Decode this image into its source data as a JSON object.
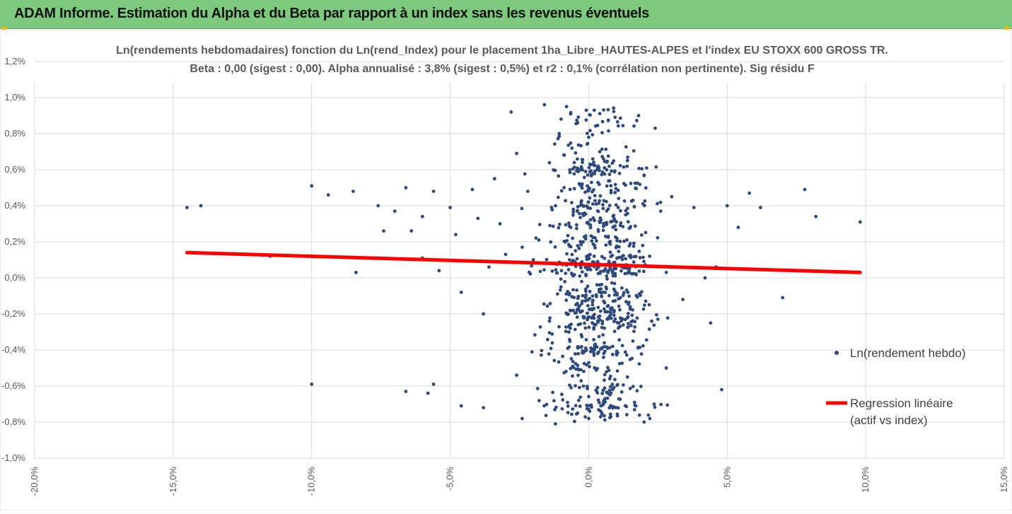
{
  "header": {
    "title": "ADAM Informe. Estimation du Alpha et du Beta par rapport à un index sans les revenus éventuels",
    "background": "#7dc97d"
  },
  "chart_data": {
    "type": "scatter",
    "title": "Ln(rendements hebdomadaires) fonction du Ln(rend_Index) pour le placement 1ha_Libre_HAUTES-ALPES et l'index EU STOXX 600 GROSS TR.",
    "subtitle": "Beta : 0,00 (sigest : 0,00). Alpha annualisé : 3,8% (sigest : 0,5%) et r2 : 0,1% (corrélation non pertinente). Sig résidu F",
    "xlabel": "",
    "ylabel": "",
    "xlim": [
      -20,
      15
    ],
    "ylim": [
      -1.0,
      1.2
    ],
    "x_ticks": [
      -20,
      -15,
      -10,
      -5,
      0,
      5,
      10,
      15
    ],
    "x_tick_labels": [
      "-20,0%",
      "-15,0%",
      "-10,0%",
      "-5,0%",
      "0,0%",
      "5,0%",
      "10,0%",
      "15,0%"
    ],
    "y_ticks": [
      1.2,
      1.0,
      0.8,
      0.6,
      0.4,
      0.2,
      0.0,
      -0.2,
      -0.4,
      -0.6,
      -0.8,
      -1.0
    ],
    "y_tick_labels": [
      "1,2%",
      "1,0%",
      "0,8%",
      "0,6%",
      "0,4%",
      "0,2%",
      "0,0%",
      "-0,2%",
      "-0,4%",
      "-0,6%",
      "-0,8%",
      "-1,0%"
    ],
    "grid": "vertical and horizontal",
    "legend_position": "right",
    "series": [
      {
        "name": "Ln(rendement hebdo)",
        "color": "#2e4a7d",
        "x": [
          -14.5,
          -14.0,
          -11.5,
          -10.0,
          -9.4,
          -8.5,
          -7.6,
          -7.4,
          -7.0,
          -6.6,
          -6.4,
          -6.0,
          -5.6,
          -5.4,
          -5.0,
          -4.8,
          -4.6,
          -4.2,
          -4.0,
          -3.8,
          -3.6,
          -3.4,
          -3.2,
          -3.0,
          -2.8,
          -2.6,
          -2.4,
          -2.2,
          -2.0,
          -1.8,
          -1.6,
          -1.4,
          -1.2,
          -1.0,
          -0.8,
          -0.6,
          -0.4,
          -0.2,
          0.0,
          0.2,
          0.4,
          0.6,
          0.8,
          1.0,
          1.2,
          1.4,
          1.6,
          1.8,
          2.0,
          2.2,
          2.4,
          2.6,
          2.8,
          3.0,
          3.4,
          3.8,
          4.2,
          4.6,
          5.0,
          5.4,
          5.8,
          6.2,
          7.0,
          7.8,
          8.2,
          9.8,
          -10.0,
          -6.6,
          -5.8,
          -4.6,
          -3.8,
          -2.4,
          -0.4,
          0.8,
          2.0,
          4.4,
          4.8,
          -2.6,
          -1.2,
          0.0,
          1.4,
          2.8,
          -8.4,
          -6.0,
          -5.6
        ],
        "y": [
          0.39,
          0.4,
          0.12,
          0.51,
          0.46,
          0.48,
          0.4,
          0.26,
          0.37,
          0.5,
          0.26,
          0.34,
          0.48,
          0.04,
          0.39,
          0.24,
          -0.08,
          0.49,
          0.33,
          -0.2,
          0.06,
          0.55,
          0.3,
          0.13,
          0.92,
          0.69,
          0.17,
          0.48,
          0.1,
          0.21,
          0.96,
          0.29,
          0.4,
          -0.05,
          0.95,
          0.02,
          0.86,
          0.2,
          0.78,
          0.93,
          0.7,
          0.05,
          -0.2,
          0.31,
          0.06,
          0.65,
          0.43,
          0.9,
          0.57,
          0.12,
          0.83,
          0.37,
          0.03,
          0.45,
          -0.12,
          0.39,
          0.0,
          0.06,
          0.4,
          0.28,
          0.47,
          0.39,
          -0.11,
          0.49,
          0.34,
          0.31,
          -0.59,
          -0.63,
          -0.64,
          -0.71,
          -0.72,
          -0.78,
          -0.75,
          -0.77,
          -0.8,
          -0.25,
          -0.62,
          -0.54,
          -0.81,
          -0.78,
          -0.55,
          -0.5,
          0.03,
          0.11,
          -0.59
        ],
        "note_density": "dense cloud concentrated between -2% and +3% on x"
      },
      {
        "name": "Regression linéaire (actif vs index)",
        "type": "line",
        "color": "#ff0000",
        "x": [
          -14.5,
          9.8
        ],
        "y": [
          0.14,
          0.03
        ]
      }
    ],
    "legend": [
      {
        "label": "Ln(rendement hebdo)",
        "marker": "dot"
      },
      {
        "label_line1": "Regression linéaire",
        "label_line2": "(actif vs index)",
        "marker": "line"
      }
    ]
  }
}
